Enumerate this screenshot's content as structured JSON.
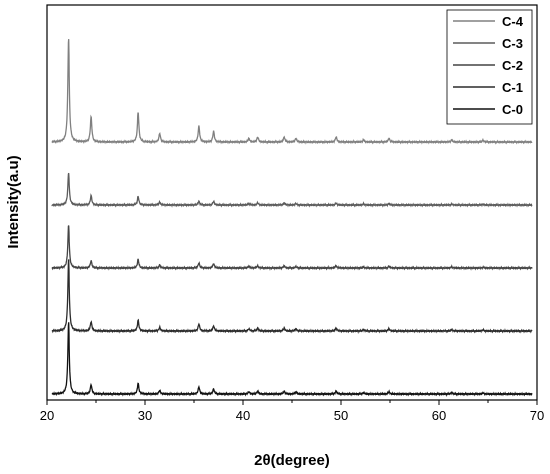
{
  "chart_data": {
    "type": "line",
    "xlabel": "2θ(degree)",
    "ylabel": "Intensity(a.u)",
    "xlim": [
      20,
      70
    ],
    "xticks": [
      20,
      30,
      40,
      50,
      60,
      70
    ],
    "grid": false,
    "legend_position": "top-right",
    "peaks_2theta": [
      22.2,
      24.5,
      29.3,
      31.5,
      35.5,
      37.0,
      40.6,
      41.5,
      44.2,
      45.4,
      49.5,
      52.3,
      54.9,
      61.3,
      64.5
    ],
    "series": [
      {
        "name": "C-0",
        "color": "#111111",
        "offset": 0,
        "intensities": [
          1.0,
          0.13,
          0.15,
          0.05,
          0.1,
          0.07,
          0.03,
          0.04,
          0.04,
          0.03,
          0.04,
          0.02,
          0.03,
          0.02,
          0.015
        ]
      },
      {
        "name": "C-1",
        "color": "#2b2b2b",
        "offset": 1,
        "intensities": [
          1.0,
          0.13,
          0.15,
          0.05,
          0.1,
          0.07,
          0.03,
          0.04,
          0.04,
          0.03,
          0.04,
          0.02,
          0.03,
          0.02,
          0.015
        ]
      },
      {
        "name": "C-2",
        "color": "#444444",
        "offset": 2,
        "intensities": [
          0.6,
          0.1,
          0.12,
          0.04,
          0.07,
          0.06,
          0.025,
          0.03,
          0.03,
          0.02,
          0.03,
          0.015,
          0.025,
          0.015,
          0.01
        ]
      },
      {
        "name": "C-3",
        "color": "#5c5c5c",
        "offset": 3,
        "intensities": [
          0.45,
          0.13,
          0.12,
          0.04,
          0.05,
          0.05,
          0.02,
          0.03,
          0.03,
          0.02,
          0.025,
          0.015,
          0.02,
          0.01,
          0.01
        ]
      },
      {
        "name": "C-4",
        "color": "#808080",
        "offset": 4,
        "intensities": [
          1.45,
          0.35,
          0.42,
          0.12,
          0.22,
          0.15,
          0.05,
          0.07,
          0.07,
          0.05,
          0.07,
          0.03,
          0.05,
          0.03,
          0.025
        ]
      }
    ]
  }
}
